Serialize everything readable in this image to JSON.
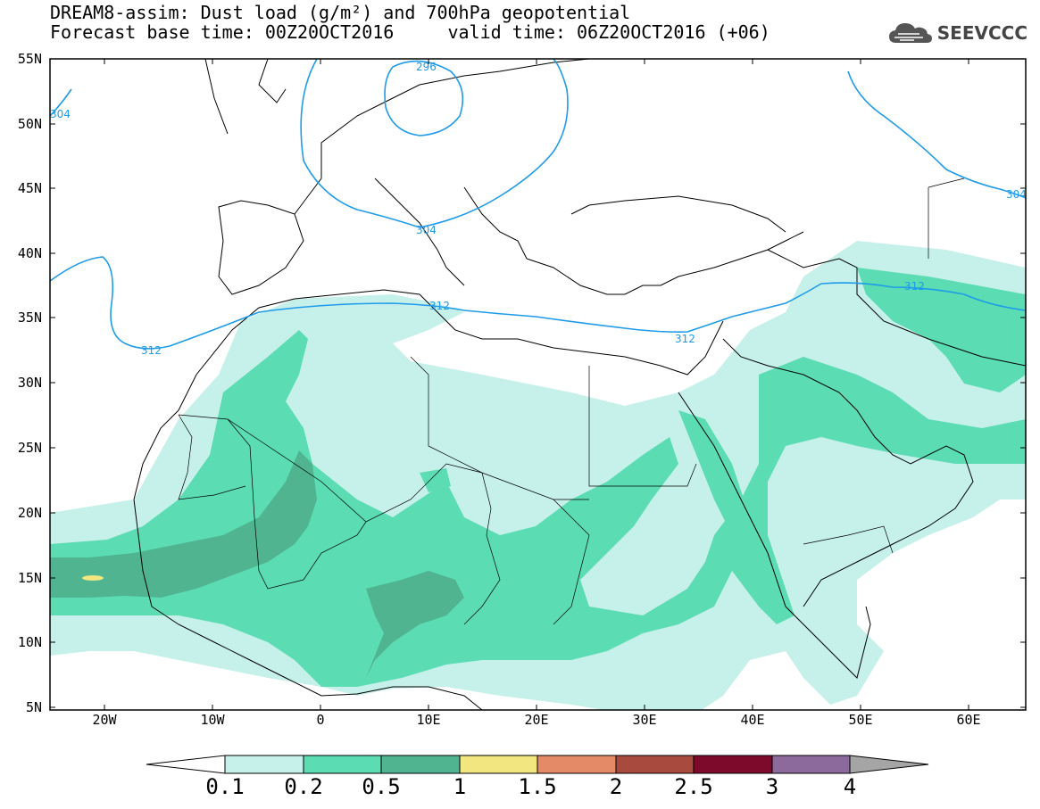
{
  "header": {
    "title_line1": "DREAM8-assim: Dust load (g/m²) and 700hPa geopotential",
    "title_line2": "Forecast base time: 00Z20OCT2016     valid time: 06Z20OCT2016 (+06)",
    "brand": "SEEVCCC",
    "brand_icon": "cloud-logo-icon"
  },
  "map": {
    "lat_labels": [
      "55N",
      "50N",
      "45N",
      "40N",
      "35N",
      "30N",
      "25N",
      "20N",
      "15N",
      "10N",
      "5N"
    ],
    "lon_labels": [
      "20W",
      "10W",
      "0",
      "10E",
      "20E",
      "30E",
      "40E",
      "50E",
      "60E"
    ],
    "contour_labels": [
      "296",
      "304",
      "304",
      "304",
      "312",
      "312",
      "312",
      "312"
    ],
    "colors": {
      "level_0_1": "#c6f0ea",
      "level_0_2": "#5bdcb2",
      "level_0_5": "#4fb48f",
      "level_1": "#f1e67f",
      "contour": "#1e9be9"
    }
  },
  "colorbar": {
    "labels": [
      "0.1",
      "0.2",
      "0.5",
      "1",
      "1.5",
      "2",
      "2.5",
      "3",
      "4"
    ],
    "colors": [
      "#c6f0ea",
      "#5bdcb2",
      "#4fb48f",
      "#f1e67f",
      "#e48a66",
      "#a94a3f",
      "#7d0a2b",
      "#8d6a9c",
      "#a5a5a5"
    ]
  }
}
